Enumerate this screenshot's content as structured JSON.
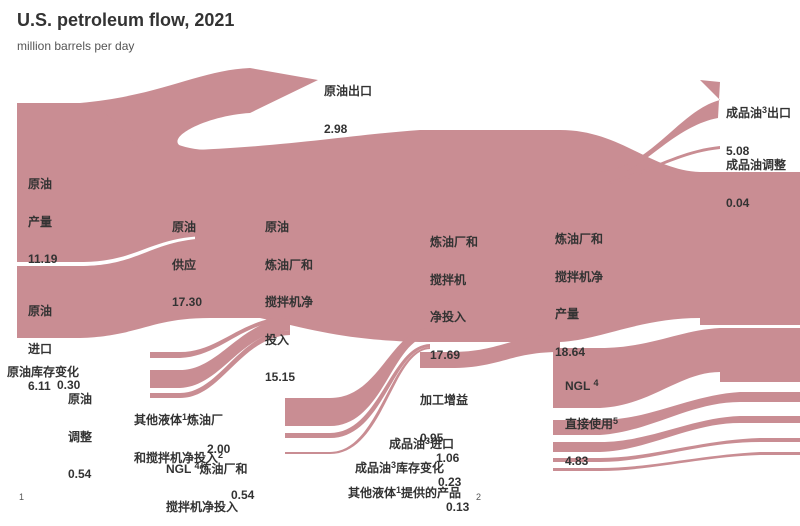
{
  "header": {
    "title": "U.S. petroleum flow, 2021",
    "subtitle": "million barrels per day"
  },
  "colors": {
    "flow": "#c98d93",
    "text": "#333333"
  },
  "nodes": {
    "crude_production": {
      "lines": [
        "原油",
        "产量"
      ],
      "value": "11.19"
    },
    "crude_imports": {
      "lines": [
        "原油",
        "进口"
      ],
      "value": "6.11"
    },
    "crude_stock_change": {
      "lines": [
        "原油库存变化"
      ],
      "value": "0.30"
    },
    "crude_adjustment": {
      "lines": [
        "原油",
        "调整"
      ],
      "value": "0.54"
    },
    "crude_supply": {
      "lines": [
        "原油",
        "供应"
      ],
      "value": "17.30"
    },
    "crude_exports": {
      "lines": [
        "原油出口"
      ],
      "value": "2.98"
    },
    "crude_refinery_input": {
      "lines": [
        "原油",
        "炼油厂和",
        "搅拌机净",
        "投入"
      ],
      "value": "15.15"
    },
    "other_liquids_input": {
      "line1_pre": "其他液体",
      "sup1": "1",
      "line1_post": "炼油厂",
      "line2_pre": "和搅拌机净投入",
      "sup2": "2",
      "value": "2.00"
    },
    "ngl_input": {
      "line1_pre": "NGL ",
      "sup1": "4",
      "line1_post": "炼油厂和",
      "line2": "搅拌机净投入",
      "value": "0.54"
    },
    "refinery_net_input": {
      "lines": [
        "炼油厂和",
        "搅拌机",
        "净投入"
      ],
      "value": "17.69"
    },
    "processing_gain": {
      "lines": [
        "加工增益"
      ],
      "value": "0.95"
    },
    "refinery_net_production": {
      "lines": [
        "炼油厂和",
        "搅拌机净",
        "产量"
      ],
      "value": "18.64"
    },
    "product_exports": {
      "pre": "成品油",
      "sup": "3",
      "post": "出口",
      "value": "5.08"
    },
    "product_adjustment": {
      "lines": [
        "成品油调整"
      ],
      "value": "0.04"
    },
    "product_imports": {
      "pre": "成品油",
      "sup": "3",
      "post": "进口",
      "value": "1.06"
    },
    "product_stock_change": {
      "pre": "成品油",
      "sup": "3",
      "post": "库存变化",
      "value": "0.23"
    },
    "other_liquids_products": {
      "pre": "其他液体",
      "sup": "1",
      "post": "提供的产品",
      "value": "0.13"
    },
    "ngl_direct_use": {
      "pre": "NGL ",
      "sup": "4",
      "line2": "直接使用",
      "sup2": "5",
      "value": "4.83"
    }
  },
  "footnote_marks": {
    "left": "1",
    "bottom": "2"
  }
}
